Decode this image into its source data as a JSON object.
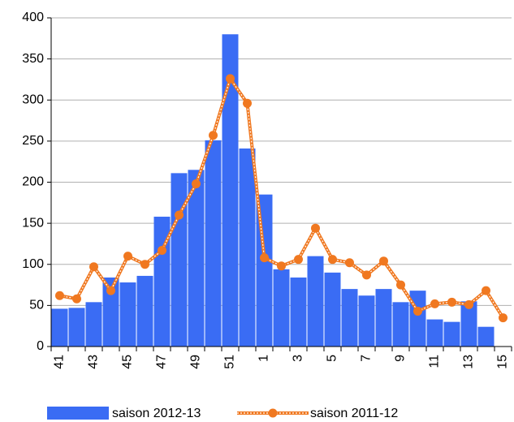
{
  "chart_data": {
    "type": "combo",
    "categories": [
      "41",
      null,
      "43",
      null,
      "45",
      null,
      "47",
      null,
      "49",
      null,
      "51",
      null,
      "1",
      null,
      "3",
      null,
      "5",
      null,
      "7",
      null,
      "9",
      null,
      "11",
      null,
      "13",
      null,
      "15"
    ],
    "series": [
      {
        "name": "saison 2012-13",
        "type": "bar",
        "color": "#3a6cf4",
        "values": [
          46,
          47,
          54,
          84,
          78,
          86,
          158,
          211,
          215,
          251,
          380,
          241,
          185,
          94,
          84,
          110,
          90,
          70,
          62,
          70,
          54,
          68,
          33,
          30,
          55,
          24,
          null
        ]
      },
      {
        "name": "saison 2011-12",
        "type": "line",
        "color": "#f07820",
        "values": [
          62,
          58,
          97,
          68,
          110,
          100,
          117,
          160,
          198,
          257,
          326,
          296,
          108,
          98,
          106,
          144,
          106,
          102,
          87,
          104,
          75,
          43,
          52,
          54,
          51,
          68,
          35
        ]
      }
    ],
    "ylim": [
      0,
      400
    ],
    "yticks": [
      0,
      50,
      100,
      150,
      200,
      250,
      300,
      350,
      400
    ],
    "grid": true
  }
}
